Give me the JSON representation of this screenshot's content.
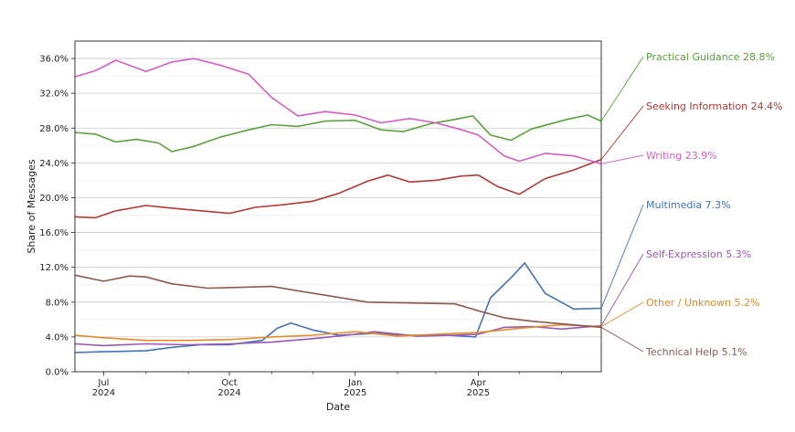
{
  "chart_data": {
    "type": "line",
    "title": "",
    "xlabel": "Date",
    "ylabel": "Share of Messages",
    "ylim": [
      0,
      38
    ],
    "y_ticks": [
      "0.0%",
      "4.0%",
      "8.0%",
      "12.0%",
      "16.0%",
      "20.0%",
      "24.0%",
      "28.0%",
      "32.0%",
      "36.0%"
    ],
    "y_tick_values": [
      0,
      4,
      8,
      12,
      16,
      20,
      24,
      28,
      32,
      36
    ],
    "x_range": [
      "2024-06-10",
      "2025-06-30"
    ],
    "x_ticks": [
      {
        "date": "2024-07-01",
        "line1": "Jul",
        "line2": "2024"
      },
      {
        "date": "2024-10-01",
        "line1": "Oct",
        "line2": "2024"
      },
      {
        "date": "2025-01-01",
        "line1": "Jan",
        "line2": "2025"
      },
      {
        "date": "2025-04-01",
        "line1": "Apr",
        "line2": "2025"
      }
    ],
    "minor_x_ticks": [
      "2024-08-01",
      "2024-09-01",
      "2024-11-01",
      "2024-12-01",
      "2025-02-01",
      "2025-03-01",
      "2025-05-01",
      "2025-06-01"
    ],
    "grid": "horizontal",
    "label_placement": "right-of-plot",
    "series": [
      {
        "name": "Practical Guidance",
        "final_label": "28.8%",
        "color": "#5aa03c",
        "x": [
          "2024-06-10",
          "2024-06-25",
          "2024-07-10",
          "2024-07-25",
          "2024-08-10",
          "2024-08-20",
          "2024-09-05",
          "2024-09-25",
          "2024-10-15",
          "2024-11-01",
          "2024-11-20",
          "2024-12-10",
          "2025-01-01",
          "2025-01-20",
          "2025-02-05",
          "2025-02-25",
          "2025-03-15",
          "2025-03-28",
          "2025-04-10",
          "2025-04-25",
          "2025-05-10",
          "2025-06-05",
          "2025-06-20",
          "2025-06-30"
        ],
        "y": [
          27.5,
          27.3,
          26.4,
          26.7,
          26.3,
          25.3,
          25.9,
          27.0,
          27.8,
          28.4,
          28.2,
          28.8,
          28.9,
          27.8,
          27.6,
          28.5,
          29.0,
          29.4,
          27.2,
          26.6,
          27.9,
          29.0,
          29.5,
          28.8
        ]
      },
      {
        "name": "Seeking Information",
        "final_label": "24.4%",
        "color": "#b03a36",
        "x": [
          "2024-06-10",
          "2024-06-25",
          "2024-07-10",
          "2024-08-01",
          "2024-08-20",
          "2024-09-10",
          "2024-10-01",
          "2024-10-20",
          "2024-11-10",
          "2024-12-01",
          "2024-12-20",
          "2025-01-10",
          "2025-01-25",
          "2025-02-10",
          "2025-03-01",
          "2025-03-20",
          "2025-04-01",
          "2025-04-15",
          "2025-05-01",
          "2025-05-20",
          "2025-06-10",
          "2025-06-30"
        ],
        "y": [
          17.8,
          17.7,
          18.5,
          19.1,
          18.8,
          18.5,
          18.2,
          18.9,
          19.2,
          19.6,
          20.5,
          21.9,
          22.6,
          21.8,
          22.0,
          22.5,
          22.6,
          21.3,
          20.4,
          22.2,
          23.2,
          24.4
        ]
      },
      {
        "name": "Writing",
        "final_label": "23.9%",
        "color": "#d45fc3",
        "x": [
          "2024-06-10",
          "2024-06-25",
          "2024-07-10",
          "2024-08-01",
          "2024-08-20",
          "2024-09-05",
          "2024-09-25",
          "2024-10-15",
          "2024-11-01",
          "2024-11-20",
          "2024-12-10",
          "2025-01-01",
          "2025-01-20",
          "2025-02-10",
          "2025-03-01",
          "2025-03-20",
          "2025-04-01",
          "2025-04-20",
          "2025-05-01",
          "2025-05-20",
          "2025-06-10",
          "2025-06-30"
        ],
        "y": [
          33.9,
          34.6,
          35.8,
          34.5,
          35.6,
          36.0,
          35.2,
          34.2,
          31.5,
          29.4,
          29.9,
          29.5,
          28.6,
          29.1,
          28.6,
          27.8,
          27.2,
          24.8,
          24.2,
          25.1,
          24.8,
          23.9
        ]
      },
      {
        "name": "Multimedia",
        "final_label": "7.3%",
        "color": "#4472b5",
        "x": [
          "2024-06-10",
          "2024-07-01",
          "2024-08-01",
          "2024-08-20",
          "2024-09-10",
          "2024-10-01",
          "2024-10-25",
          "2024-11-05",
          "2024-11-15",
          "2024-12-01",
          "2024-12-20",
          "2025-01-15",
          "2025-02-10",
          "2025-03-10",
          "2025-03-30",
          "2025-04-10",
          "2025-04-25",
          "2025-05-05",
          "2025-05-20",
          "2025-06-10",
          "2025-06-30"
        ],
        "y": [
          2.2,
          2.3,
          2.4,
          2.8,
          3.1,
          3.1,
          3.6,
          5.0,
          5.6,
          4.8,
          4.2,
          4.4,
          4.2,
          4.2,
          4.0,
          8.5,
          10.8,
          12.5,
          9.0,
          7.2,
          7.3
        ]
      },
      {
        "name": "Self-Expression",
        "final_label": "5.3%",
        "color": "#9958b4",
        "x": [
          "2024-06-10",
          "2024-07-01",
          "2024-08-01",
          "2024-09-01",
          "2024-10-01",
          "2024-11-01",
          "2024-12-01",
          "2025-01-01",
          "2025-01-15",
          "2025-02-15",
          "2025-03-15",
          "2025-04-01",
          "2025-04-20",
          "2025-05-10",
          "2025-06-01",
          "2025-06-30"
        ],
        "y": [
          3.2,
          3.0,
          3.2,
          3.1,
          3.2,
          3.4,
          3.8,
          4.3,
          4.6,
          4.1,
          4.2,
          4.3,
          5.1,
          5.2,
          4.9,
          5.3
        ]
      },
      {
        "name": "Other / Unknown",
        "final_label": "5.2%",
        "color": "#e28c2b",
        "x": [
          "2024-06-10",
          "2024-07-01",
          "2024-08-01",
          "2024-09-01",
          "2024-10-01",
          "2024-11-01",
          "2024-12-01",
          "2025-01-01",
          "2025-02-01",
          "2025-03-01",
          "2025-04-01",
          "2025-05-01",
          "2025-06-01",
          "2025-06-30"
        ],
        "y": [
          4.2,
          3.9,
          3.6,
          3.6,
          3.7,
          4.0,
          4.2,
          4.6,
          4.1,
          4.3,
          4.5,
          5.0,
          5.4,
          5.2
        ]
      },
      {
        "name": "Technical Help",
        "final_label": "5.1%",
        "color": "#8a5a50",
        "x": [
          "2024-06-10",
          "2024-07-01",
          "2024-07-20",
          "2024-08-01",
          "2024-08-20",
          "2024-09-15",
          "2024-10-10",
          "2024-11-01",
          "2024-11-20",
          "2024-12-10",
          "2025-01-10",
          "2025-02-10",
          "2025-03-15",
          "2025-04-01",
          "2025-04-20",
          "2025-05-10",
          "2025-06-01",
          "2025-06-30"
        ],
        "y": [
          11.1,
          10.4,
          11.0,
          10.9,
          10.1,
          9.6,
          9.7,
          9.8,
          9.3,
          8.8,
          8.0,
          7.9,
          7.8,
          7.0,
          6.2,
          5.8,
          5.5,
          5.1
        ]
      }
    ]
  }
}
